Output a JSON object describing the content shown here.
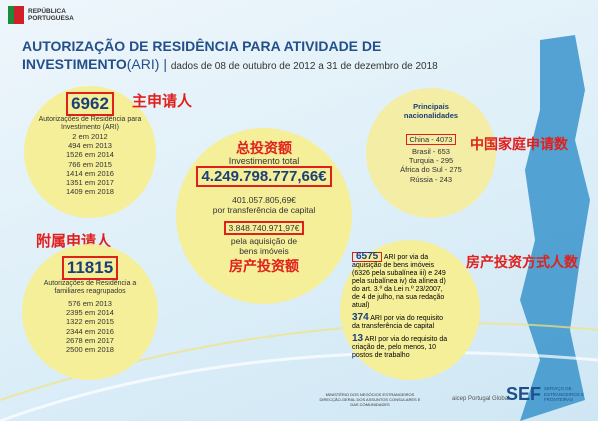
{
  "header": {
    "logo_lines": [
      "REPÚBLICA",
      "PORTUGUESA"
    ],
    "title_line1": "AUTORIZAÇÃO DE RESIDÊNCIA PARA ATIVIDADE DE",
    "title_line2": "INVESTIMENTO",
    "title_abbr": "(ARI)",
    "separator": "|",
    "period": "dados de 08 de outubro de 2012 a 31 de dezembro de 2018"
  },
  "main_applicants": {
    "annotation": "主申请人",
    "total": "6962",
    "description": "Autorizações de Residência para Investimento (ARI)",
    "items": [
      "2 em 2012",
      "494 em 2013",
      "1526 em 2014",
      "766 em 2015",
      "1414 em 2016",
      "1351 em 2017",
      "1409 em 2018"
    ]
  },
  "dependents": {
    "annotation": "附属申请人",
    "total": "11815",
    "description": "Autorizações de Residência a familiares reagrupados",
    "items": [
      "576 em 2013",
      "2395 em 2014",
      "1322 em 2015",
      "2344 em 2016",
      "2678 em 2017",
      "2500 em 2018"
    ]
  },
  "investment": {
    "annotation": "总投资额",
    "label": "Investimento total",
    "total": "4.249.798.777,66€",
    "capital_value": "401.057.805,69€",
    "capital_label": "por transferência de capital",
    "property_value": "3.848.740.971,97€",
    "property_label": "pela aquisição de bens imóveis",
    "property_annotation": "房产投资额"
  },
  "nationalities": {
    "title": "Principais nacionalidades",
    "annotation": "中国家庭申请数",
    "items": [
      "China - 4073",
      "Brasil - 653",
      "Turquia - 295",
      "África do Sul - 275",
      "Rússia - 243"
    ]
  },
  "investment_types": {
    "annotation": "房产投资方式人数",
    "items": [
      {
        "number": "6575",
        "text": "ARI por via da aquisição de bens imóveis (6326 pela subalínea iii) e 249 pela subalínea iv) da alínea d) do art. 3.º da Lei n.º 23/2007, de 4 de julho, na sua redação atual)"
      },
      {
        "number": "374",
        "text": "ARI por via do requisito da transferência de capital"
      },
      {
        "number": "13",
        "text": "ARI por via do requisito da criação de, pelo menos, 10 postos de trabalho"
      }
    ]
  },
  "footer": {
    "ministry": "MINISTÉRIO DOS NEGÓCIOS ESTRANGEIROS DIRECÇÃO-GERAL DOS ASSUNTOS CONSULARES E DAS COMUNIDADES",
    "aicep": "aicep Portugal Global",
    "sef": "SEF",
    "sef_name": "SERVIÇO DE ESTRANGEIROS E FRONTEIRAS"
  }
}
